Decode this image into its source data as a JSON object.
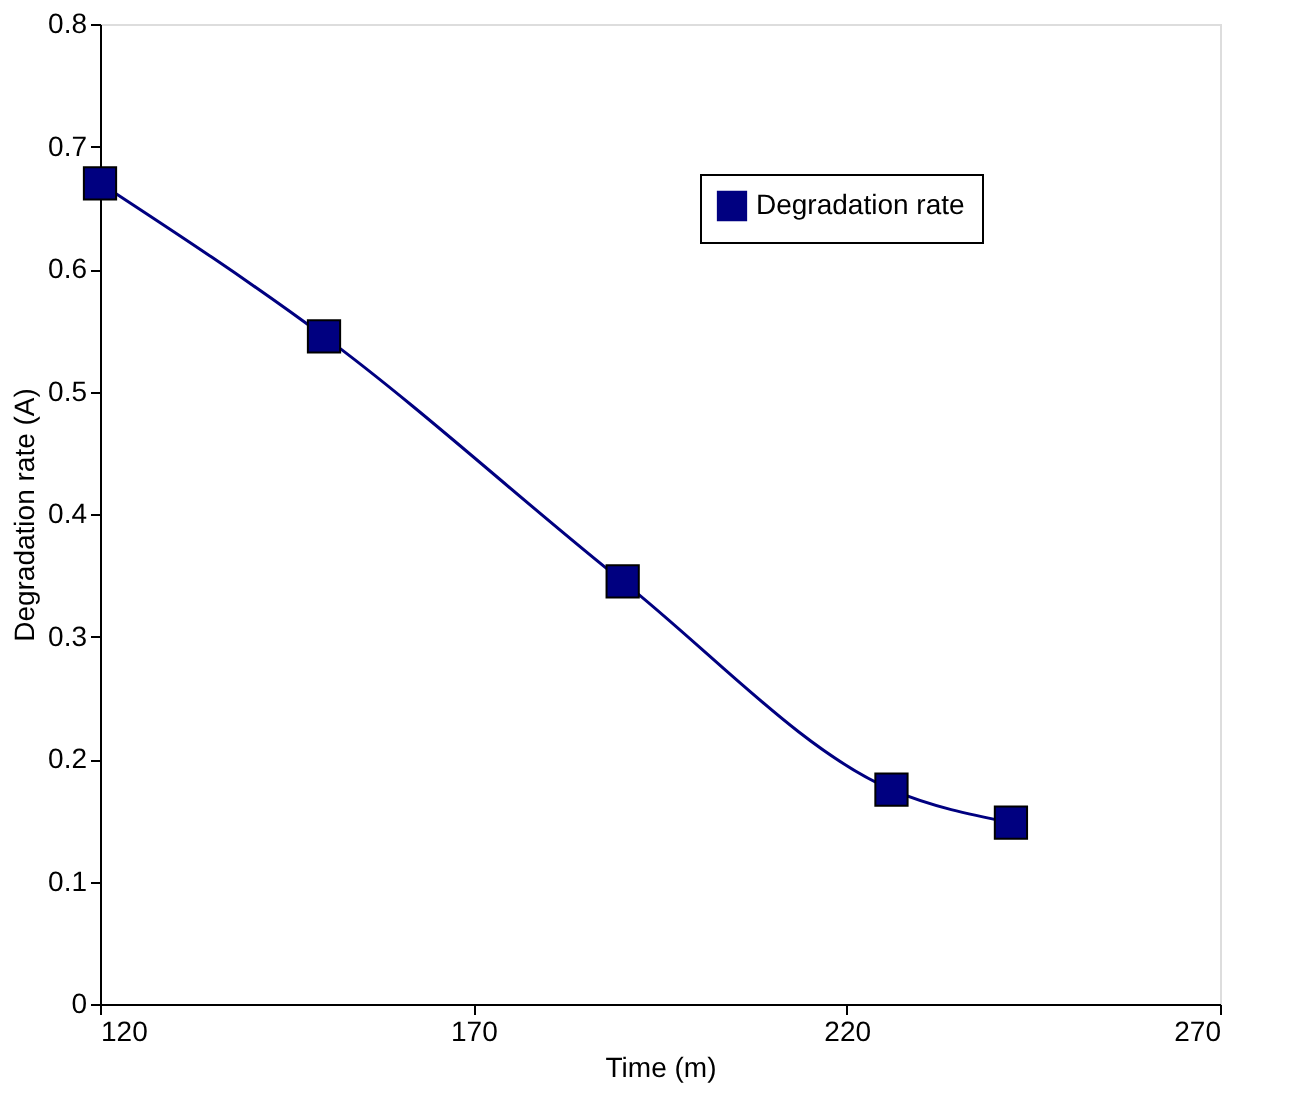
{
  "chart_data": {
    "type": "line",
    "xlabel": "Time (m)",
    "ylabel": "Degradation rate (A)",
    "x": [
      120,
      150,
      190,
      226,
      242
    ],
    "series": [
      {
        "name": "Degradation rate",
        "color": "#000080",
        "values": [
          0.67,
          0.545,
          0.345,
          0.175,
          0.148
        ]
      }
    ],
    "xlim": [
      120,
      270
    ],
    "xticks": [
      120,
      170,
      220,
      270
    ],
    "ylim": [
      0,
      0.8
    ],
    "yticks": [
      0,
      0.1,
      0.2,
      0.3,
      0.4,
      0.5,
      0.6,
      0.7,
      0.8
    ],
    "grid": false,
    "legend": "right",
    "marker": "square",
    "line_style": "solid"
  }
}
